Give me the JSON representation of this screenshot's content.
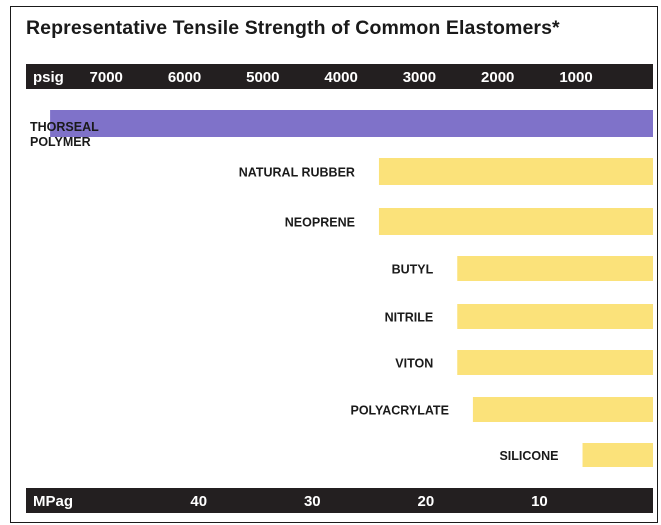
{
  "chart_data": {
    "type": "bar",
    "orientation": "horizontal",
    "title": "Representative Tensile Strength of Common Elastomers*",
    "top_axis": {
      "unit_label": "psig",
      "ticks": [
        7000,
        6000,
        5000,
        4000,
        3000,
        2000,
        1000
      ],
      "direction": "reversed"
    },
    "bottom_axis": {
      "unit_label": "MPag",
      "ticks": [
        40,
        30,
        20,
        10
      ]
    },
    "categories": [
      "THORSEAL POLYMER",
      "NATURAL RUBBER",
      "NEOPRENE",
      "BUTYL",
      "NITRILE",
      "VITON",
      "POLYACRYLATE",
      "SILICONE"
    ],
    "values_psig": [
      7700,
      3500,
      3500,
      2500,
      2500,
      2500,
      2300,
      900
    ],
    "bar_colors": [
      "#7f72c9",
      "#fbe27a",
      "#fbe27a",
      "#fbe27a",
      "#fbe27a",
      "#fbe27a",
      "#fbe27a",
      "#fbe27a"
    ]
  },
  "colors": {
    "axis_band": "#231f20",
    "axis_text": "#ffffff",
    "frame": "#1a1a1a"
  }
}
